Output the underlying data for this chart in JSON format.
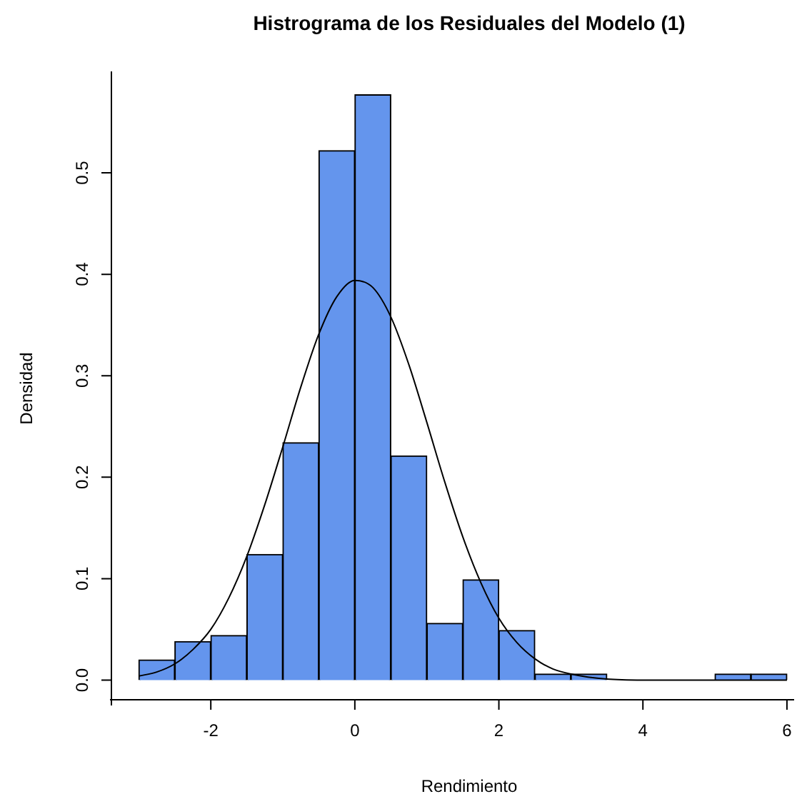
{
  "chart_data": {
    "type": "histogram",
    "title": "Histrograma de los Residuales del Modelo (1)",
    "xlabel": "Rendimiento",
    "ylabel": "Densidad",
    "bins": [
      -3,
      -2.5,
      -2,
      -1.5,
      -1,
      -0.5,
      0,
      0.5,
      1,
      1.5,
      2,
      2.5,
      3,
      3.5,
      4,
      4.5,
      5,
      5.5,
      6
    ],
    "values": [
      0.02,
      0.038,
      0.044,
      0.124,
      0.234,
      0.522,
      0.577,
      0.221,
      0.056,
      0.099,
      0.049,
      0.006,
      0.006,
      0,
      0,
      0,
      0.006,
      0.006
    ],
    "color": "#6495ed",
    "series": [
      {
        "type": "line",
        "color": "#000000",
        "x": [
          -3,
          -2.75,
          -2.5,
          -2.25,
          -2,
          -1.75,
          -1.5,
          -1.25,
          -1,
          -0.75,
          -0.5,
          -0.25,
          0,
          0.25,
          0.5,
          0.75,
          1,
          1.25,
          1.5,
          1.75,
          2,
          2.25,
          2.5,
          2.75,
          3,
          3.5,
          4,
          5,
          6
        ],
        "values": [
          0.004,
          0.008,
          0.016,
          0.03,
          0.05,
          0.081,
          0.122,
          0.173,
          0.23,
          0.289,
          0.341,
          0.378,
          0.394,
          0.387,
          0.358,
          0.311,
          0.254,
          0.195,
          0.141,
          0.096,
          0.061,
          0.037,
          0.021,
          0.011,
          0.006,
          0.001,
          0,
          0,
          0
        ]
      }
    ],
    "xlim": [
      -3.4,
      6.1
    ],
    "ylim": [
      -0.025,
      0.6
    ],
    "xticks": [
      -2,
      0,
      2,
      4,
      6
    ],
    "yticks": [
      {
        "value": 0,
        "label": "0.0"
      },
      {
        "value": 0.1,
        "label": "0.1"
      },
      {
        "value": 0.2,
        "label": "0.2"
      },
      {
        "value": 0.3,
        "label": "0.3"
      },
      {
        "value": 0.4,
        "label": "0.4"
      },
      {
        "value": 0.5,
        "label": "0.5"
      }
    ],
    "grid": false,
    "legend": false
  }
}
